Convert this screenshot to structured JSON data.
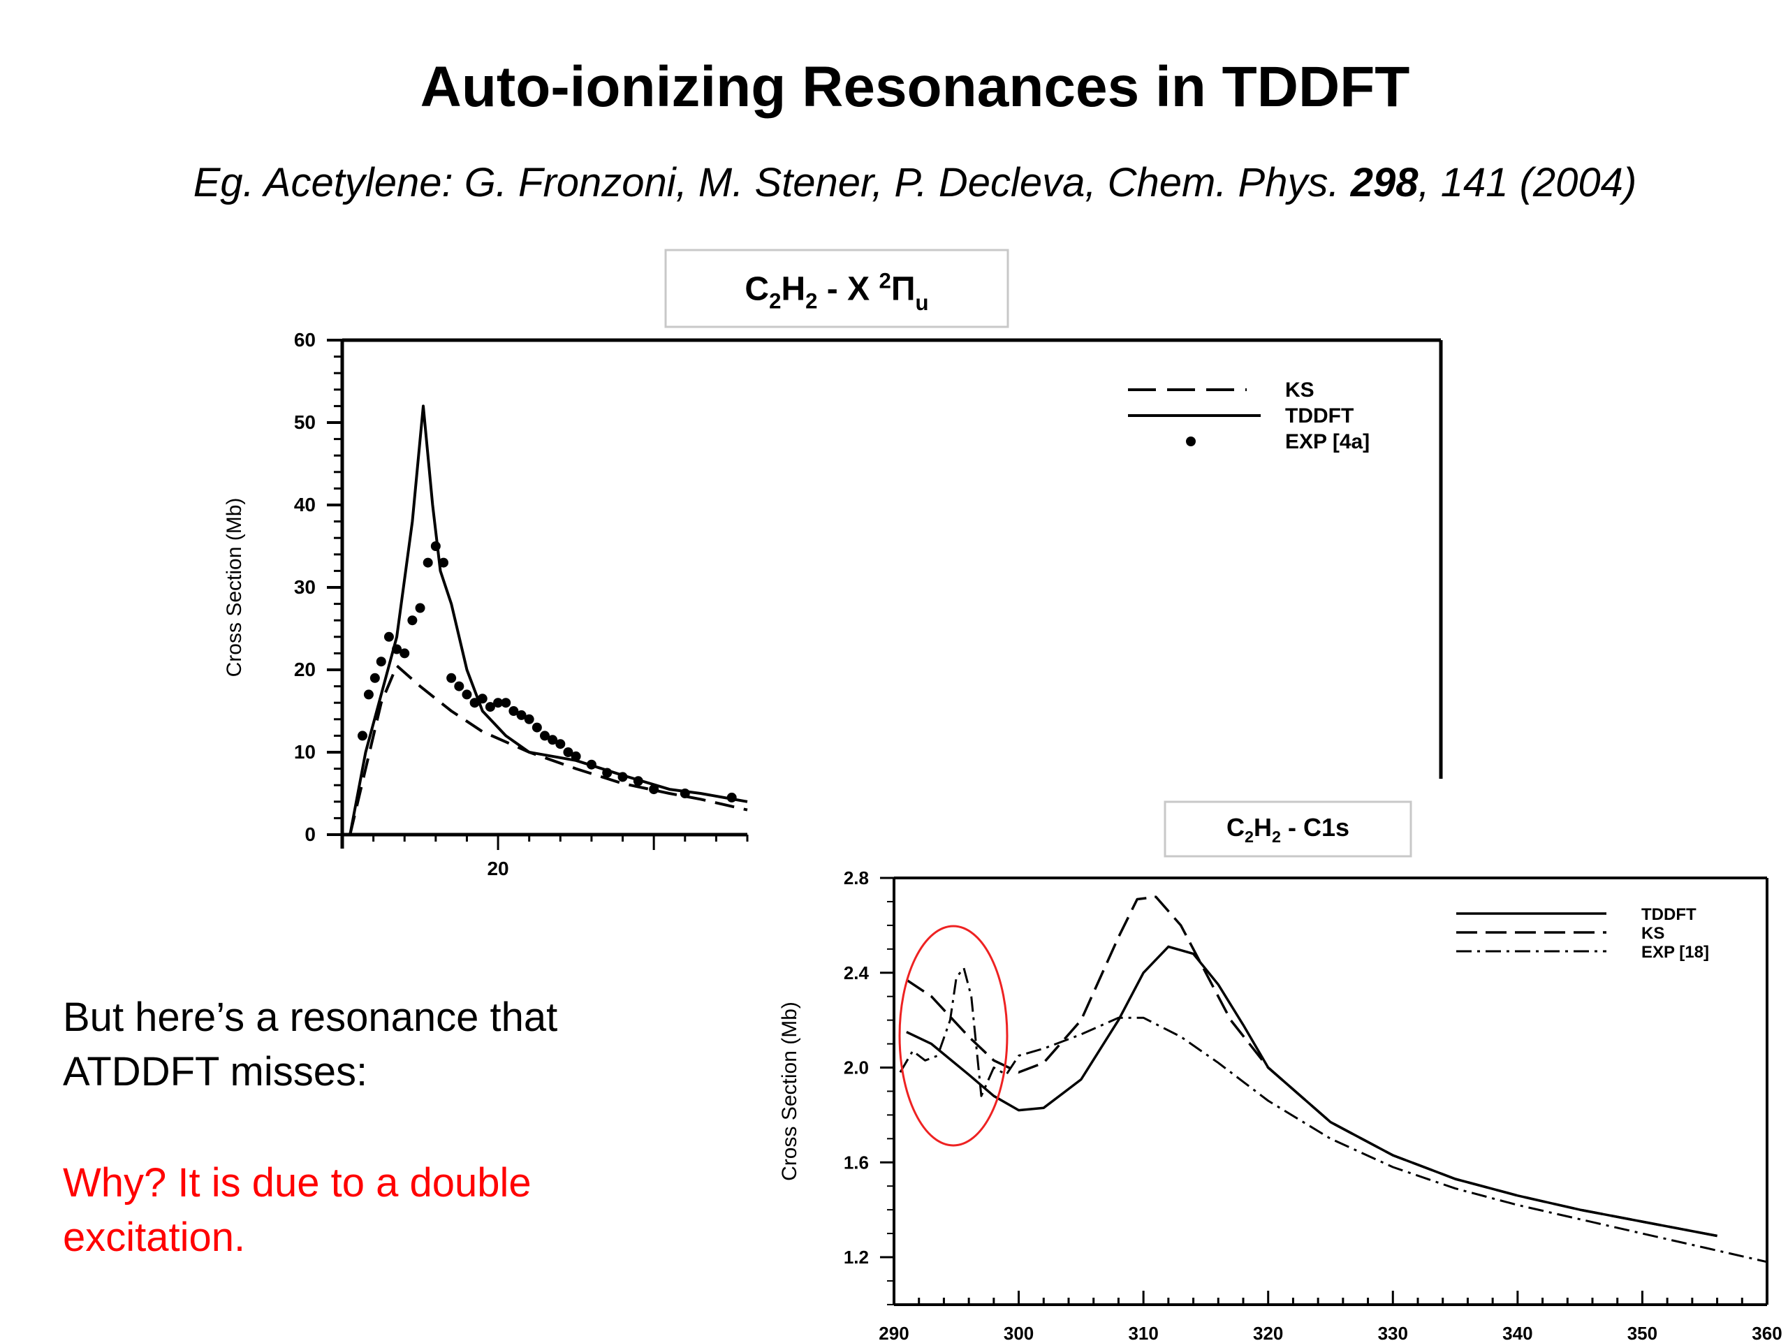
{
  "slide": {
    "title": "Auto-ionizing Resonances in TDDFT",
    "subtitle": {
      "prefix": "Eg. Acetylene: G. Fronzoni, M. Stener, P. Decleva, Chem. Phys. ",
      "volume": "298",
      "suffix": ", 141 (2004)"
    },
    "body": {
      "line1": "But here’s a resonance that",
      "line2": "ATDDFT misses:",
      "highlight_line1": "Why? It is due to a double",
      "highlight_line2": "excitation.",
      "highlight_color": "#ff0000"
    }
  },
  "chart_data": [
    {
      "type": "line",
      "title": "C2H2 - X 2Πu",
      "ylabel": "Cross Section (Mb)",
      "xlabel": "",
      "xlim": [
        10,
        36
      ],
      "ylim": [
        0,
        60
      ],
      "yticks": [
        0,
        10,
        20,
        30,
        40,
        50,
        60
      ],
      "xticks": [
        20
      ],
      "grid": false,
      "legend": "top-right",
      "legend_entries": [
        "KS",
        "TDDFT",
        "EXP [4a]"
      ],
      "series": [
        {
          "name": "KS",
          "style": "dashed",
          "x": [
            10.5,
            11.5,
            12.5,
            13.5,
            15,
            17,
            19,
            22,
            25,
            28,
            31,
            33,
            36
          ],
          "y": [
            0,
            8,
            16,
            20.5,
            18,
            15,
            12.5,
            10,
            8,
            6.2,
            5,
            4.3,
            3
          ]
        },
        {
          "name": "TDDFT",
          "style": "solid",
          "x": [
            10.5,
            11.5,
            12.5,
            13.5,
            14.5,
            15.2,
            15.8,
            16.3,
            17,
            18,
            19,
            20.5,
            22,
            25,
            28,
            31,
            33,
            36
          ],
          "y": [
            0,
            10,
            17,
            24,
            38,
            52,
            40,
            32,
            28,
            20,
            15,
            12,
            10,
            9,
            7.2,
            5.5,
            5,
            4
          ]
        },
        {
          "name": "EXP [4a]",
          "style": "markers",
          "x": [
            11.3,
            11.7,
            12.1,
            12.5,
            13,
            13.5,
            14,
            14.5,
            15,
            15.5,
            16,
            16.5,
            17,
            17.5,
            18,
            18.5,
            19,
            19.5,
            20,
            20.5,
            21,
            21.5,
            22,
            22.5,
            23,
            23.5,
            24,
            24.5,
            25,
            26,
            27,
            28,
            29,
            30,
            32,
            35
          ],
          "y": [
            12,
            17,
            19,
            21,
            24,
            22.5,
            22,
            26,
            27.5,
            33,
            35,
            33,
            19,
            18,
            17,
            16,
            16.5,
            15.5,
            16,
            16,
            15,
            14.5,
            14,
            13,
            12,
            11.5,
            11,
            10,
            9.5,
            8.5,
            7.5,
            7,
            6.5,
            5.5,
            5,
            4.5
          ]
        }
      ]
    },
    {
      "type": "line",
      "title": "C2H2 - C1s",
      "ylabel": "Cross Section (Mb)",
      "xlabel": "",
      "xlim": [
        290,
        360
      ],
      "ylim": [
        1.0,
        2.8
      ],
      "yticks": [
        1.2,
        1.6,
        2.0,
        2.4,
        2.8
      ],
      "xticks": [
        290,
        300,
        310,
        320,
        330,
        340,
        350,
        360
      ],
      "grid": false,
      "legend": "top-right",
      "legend_entries": [
        "TDDFT",
        "KS",
        "EXP [18]"
      ],
      "annotation": "ellipse around 291-299",
      "series": [
        {
          "name": "TDDFT",
          "style": "solid",
          "x": [
            291,
            293,
            296,
            298,
            300,
            302,
            305,
            308,
            310,
            312,
            314,
            316,
            318,
            320,
            325,
            330,
            335,
            340,
            345,
            350,
            356
          ],
          "y": [
            2.15,
            2.1,
            1.97,
            1.88,
            1.82,
            1.83,
            1.95,
            2.2,
            2.4,
            2.51,
            2.48,
            2.35,
            2.18,
            2.0,
            1.77,
            1.63,
            1.53,
            1.46,
            1.4,
            1.35,
            1.29
          ]
        },
        {
          "name": "KS",
          "style": "dashed",
          "x": [
            291,
            293,
            296,
            298,
            300,
            302,
            305,
            308,
            309.5,
            311,
            313,
            315,
            317,
            320,
            325,
            330,
            335,
            340,
            345,
            350,
            356
          ],
          "y": [
            2.37,
            2.3,
            2.13,
            2.03,
            1.98,
            2.02,
            2.2,
            2.55,
            2.71,
            2.72,
            2.6,
            2.4,
            2.2,
            2.0,
            1.77,
            1.63,
            1.53,
            1.46,
            1.4,
            1.35,
            1.29
          ]
        },
        {
          "name": "EXP [18]",
          "style": "dashdot",
          "x": [
            290.5,
            291.5,
            292.5,
            293.5,
            294.5,
            295,
            295.6,
            296.2,
            297,
            298,
            299,
            300,
            302,
            305,
            308,
            310,
            313,
            316,
            320,
            325,
            330,
            335,
            340,
            345,
            350,
            355,
            360
          ],
          "y": [
            1.98,
            2.07,
            2.03,
            2.05,
            2.2,
            2.38,
            2.42,
            2.3,
            1.88,
            2.0,
            1.97,
            2.05,
            2.08,
            2.14,
            2.21,
            2.21,
            2.13,
            2.02,
            1.86,
            1.7,
            1.58,
            1.49,
            1.42,
            1.36,
            1.3,
            1.24,
            1.18
          ]
        }
      ]
    }
  ]
}
